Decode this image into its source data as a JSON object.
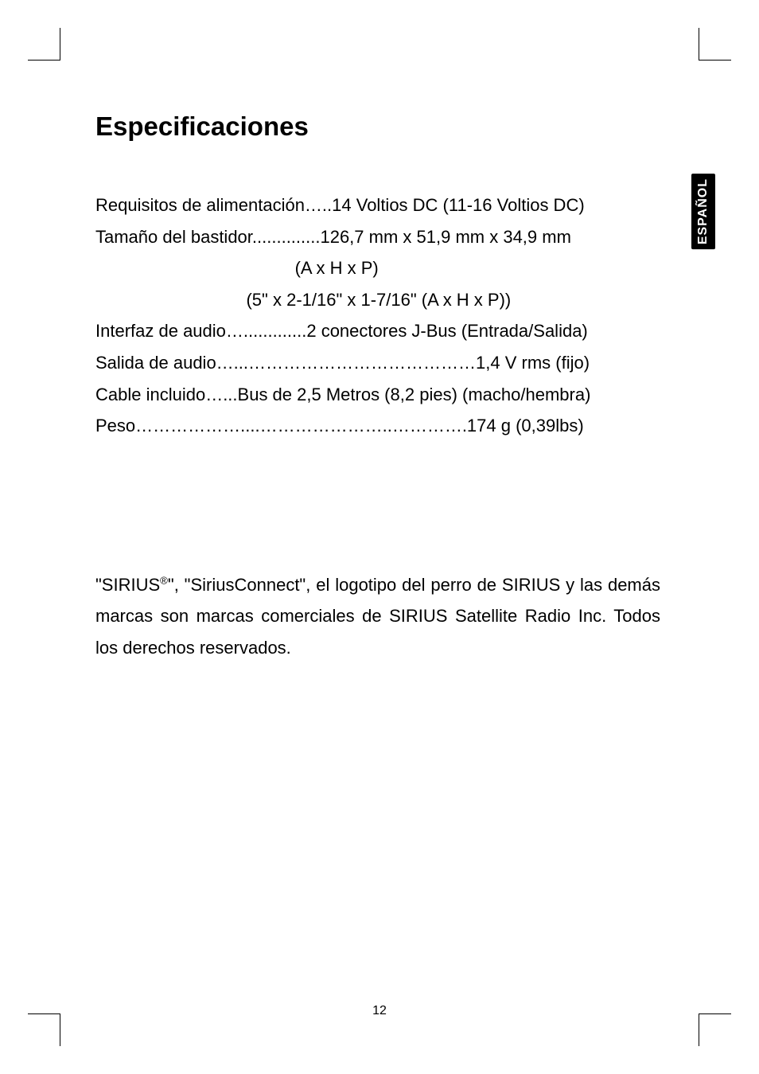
{
  "title": "Especificaciones",
  "specs": {
    "line1": "Requisitos de alimentación…..14 Voltios DC (11-16 Voltios DC)",
    "line2": "Tamaño del bastidor..............126,7 mm x 51,9 mm x 34,9 mm",
    "line3": "                                         (A x H x P)",
    "line4": "                               (5\" x 2-1/16\" x 1-7/16\" (A x H x P))",
    "line5": "Interfaz de audio….............2 conectores J-Bus (Entrada/Salida)",
    "line6": "Salida de audio…...…………………………………1,4 V rms (fijo)",
    "line7": "Cable incluido…...Bus de 2,5 Metros (8,2 pies) (macho/hembra)",
    "line8": "Peso………………....…………………..………….174 g (0,39lbs)"
  },
  "trademark": {
    "prefix": "\"SIRIUS",
    "suffix": "\", \"SiriusConnect\", el logotipo del perro de SIRIUS y las demás marcas son marcas comerciales de SIRIUS Satellite Radio Inc. Todos los derechos reservados."
  },
  "page_number": "12",
  "side_label": "ESPAÑOL",
  "reg_symbol": "®"
}
